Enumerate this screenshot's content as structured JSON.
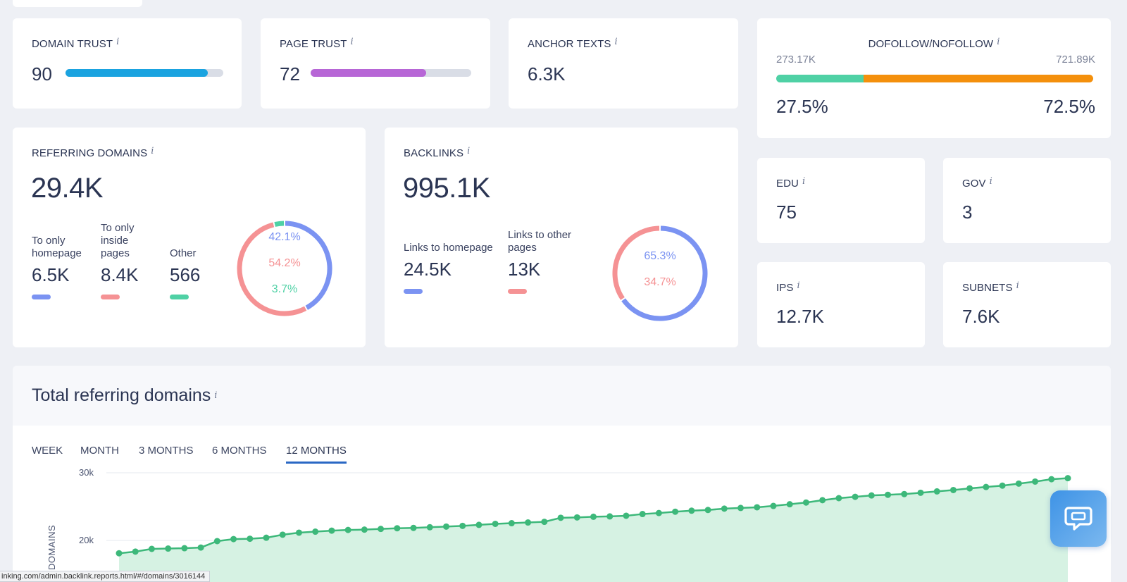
{
  "domain_trust": {
    "label": "DOMAIN TRUST",
    "value": "90",
    "fill": 0.9,
    "color": "#1aa3e0"
  },
  "page_trust": {
    "label": "PAGE TRUST",
    "value": "72",
    "fill": 0.72,
    "color": "#b766d6"
  },
  "anchor_texts": {
    "label": "ANCHOR TEXTS",
    "value": "6.3K"
  },
  "dofollow": {
    "label": "DOFOLLOW/NOFOLLOW",
    "left_count": "273.17K",
    "right_count": "721.89K",
    "left_pct": "27.5%",
    "right_pct": "72.5%",
    "left_fraction": 0.275,
    "left_color": "#4fd1a5",
    "right_color": "#f4900c"
  },
  "referring_domains": {
    "label": "REFERRING DOMAINS",
    "value": "29.4K",
    "stats": [
      {
        "label": "To only homepage",
        "value": "6.5K",
        "color": "#7b93f2"
      },
      {
        "label": "To only inside pages",
        "value": "8.4K",
        "color": "#f59294"
      },
      {
        "label": "Other",
        "value": "566",
        "color": "#4fd1a5"
      }
    ],
    "donut": [
      {
        "pct": "42.1%",
        "fraction": 0.421,
        "color": "#7b93f2"
      },
      {
        "pct": "54.2%",
        "fraction": 0.542,
        "color": "#f59294"
      },
      {
        "pct": "3.7%",
        "fraction": 0.037,
        "color": "#4fd1a5"
      }
    ]
  },
  "backlinks": {
    "label": "BACKLINKS",
    "value": "995.1K",
    "stats": [
      {
        "label": "Links to homepage",
        "value": "24.5K",
        "color": "#7b93f2"
      },
      {
        "label": "Links to other pages",
        "value": "13K",
        "color": "#f59294"
      }
    ],
    "donut": [
      {
        "pct": "65.3%",
        "fraction": 0.653,
        "color": "#7b93f2"
      },
      {
        "pct": "34.7%",
        "fraction": 0.347,
        "color": "#f59294"
      }
    ]
  },
  "edu": {
    "label": "EDU",
    "value": "75"
  },
  "gov": {
    "label": "GOV",
    "value": "3"
  },
  "ips": {
    "label": "IPS",
    "value": "12.7K"
  },
  "subnets": {
    "label": "SUBNETS",
    "value": "7.6K"
  },
  "total_domains": {
    "title": "Total referring domains",
    "tabs": [
      "WEEK",
      "MONTH",
      "3 MONTHS",
      "6 MONTHS",
      "12 MONTHS"
    ],
    "active_tab": "12 MONTHS"
  },
  "chart_data": {
    "type": "area",
    "ylabel": "DOMAINS",
    "yticks": [
      "30k",
      "20k"
    ],
    "ytick_values": [
      30000,
      20000
    ],
    "color": "#3db87a",
    "values": [
      18100,
      18350,
      18750,
      18800,
      18850,
      18950,
      19900,
      20200,
      20250,
      20400,
      20850,
      21150,
      21300,
      21450,
      21550,
      21600,
      21700,
      21800,
      21850,
      21950,
      22050,
      22150,
      22300,
      22450,
      22550,
      22650,
      22750,
      23350,
      23400,
      23500,
      23550,
      23650,
      23900,
      24050,
      24250,
      24400,
      24500,
      24700,
      24800,
      24900,
      25100,
      25350,
      25600,
      25950,
      26250,
      26450,
      26650,
      26750,
      26850,
      27050,
      27250,
      27450,
      27700,
      27900,
      28100,
      28400,
      28700,
      29050,
      29200
    ]
  },
  "status_url": "inking.com/admin.backlink.reports.html/#/domains/3016144",
  "chat_icon": "chat-bubble-icon"
}
